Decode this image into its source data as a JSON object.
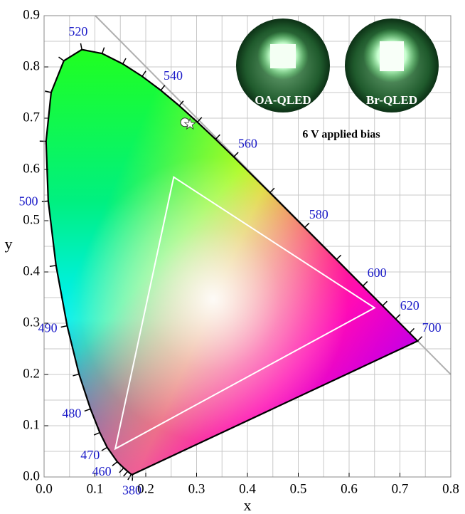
{
  "chart_data": {
    "type": "chromaticity",
    "xlabel": "x",
    "ylabel": "y",
    "xlim": [
      0,
      0.8
    ],
    "ylim": [
      0,
      0.9
    ],
    "xticks": [
      {
        "value": 0,
        "label": "0.0"
      },
      {
        "value": 0.1,
        "label": "0.1"
      },
      {
        "value": 0.2,
        "label": "0.2"
      },
      {
        "value": 0.3,
        "label": "0.3"
      },
      {
        "value": 0.4,
        "label": "0.4"
      },
      {
        "value": 0.5,
        "label": "0.5"
      },
      {
        "value": 0.6,
        "label": "0.6"
      },
      {
        "value": 0.7,
        "label": "0.7"
      },
      {
        "value": 0.8,
        "label": "0.8"
      }
    ],
    "yticks": [
      {
        "value": 0,
        "label": "0.0"
      },
      {
        "value": 0.1,
        "label": "0.1"
      },
      {
        "value": 0.2,
        "label": "0.2"
      },
      {
        "value": 0.3,
        "label": "0.3"
      },
      {
        "value": 0.4,
        "label": "0.4"
      },
      {
        "value": 0.5,
        "label": "0.5"
      },
      {
        "value": 0.6,
        "label": "0.6"
      },
      {
        "value": 0.7,
        "label": "0.7"
      },
      {
        "value": 0.8,
        "label": "0.8"
      },
      {
        "value": 0.9,
        "label": "0.9"
      }
    ],
    "grid": true,
    "locus": {
      "x": [
        0.1741,
        0.1714,
        0.1644,
        0.1566,
        0.144,
        0.1241,
        0.1096,
        0.0913,
        0.0687,
        0.0454,
        0.0235,
        0.0082,
        0.0039,
        0.0139,
        0.0389,
        0.0743,
        0.1142,
        0.1547,
        0.1929,
        0.2296,
        0.2658,
        0.3016,
        0.3373,
        0.3731,
        0.4441,
        0.5125,
        0.5752,
        0.627,
        0.6658,
        0.6915,
        0.719,
        0.7347
      ],
      "y": [
        0.005,
        0.0051,
        0.0109,
        0.0177,
        0.0297,
        0.0578,
        0.0868,
        0.1327,
        0.2007,
        0.295,
        0.4127,
        0.5384,
        0.6548,
        0.7502,
        0.812,
        0.8338,
        0.8262,
        0.8059,
        0.7816,
        0.7543,
        0.7243,
        0.6923,
        0.6589,
        0.6245,
        0.5547,
        0.4866,
        0.4242,
        0.3725,
        0.334,
        0.3083,
        0.2809,
        0.2653
      ],
      "labels": [
        380,
        null,
        null,
        null,
        460,
        470,
        null,
        480,
        null,
        490,
        null,
        500,
        null,
        null,
        null,
        520,
        null,
        null,
        null,
        540,
        null,
        null,
        null,
        560,
        null,
        580,
        null,
        600,
        null,
        620,
        null,
        700
      ]
    },
    "triangle": {
      "x": [
        0.65,
        0.255,
        0.14
      ],
      "y": [
        0.33,
        0.585,
        0.055
      ],
      "color": "#ffffff"
    },
    "markers": [
      {
        "shape": "circle",
        "x": 0.277,
        "y": 0.692,
        "color": "#ffffff"
      },
      {
        "shape": "star",
        "x": 0.287,
        "y": 0.688,
        "color": "#ffffff"
      }
    ],
    "insets": [
      {
        "label": "OA-QLED"
      },
      {
        "label": "Br-QLED"
      }
    ],
    "inset_caption": "6 V applied bias"
  }
}
